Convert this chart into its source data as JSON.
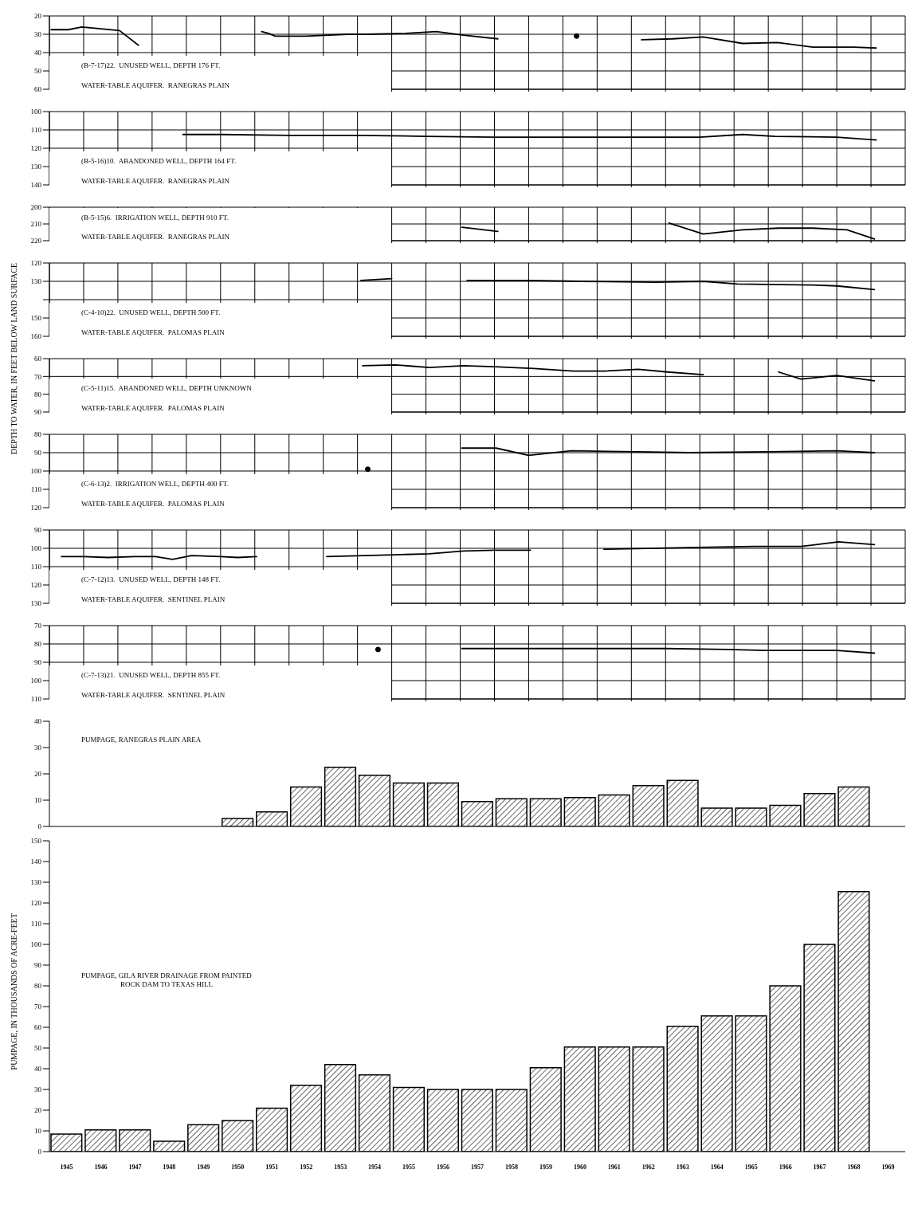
{
  "chart_data": [
    {
      "type": "line",
      "xlim": [
        1944.5,
        1969.5
      ],
      "xticks": [
        1945.5,
        1946.5,
        1947.5,
        1948.5,
        1949.5,
        1950.5,
        1951.5,
        1952.5,
        1953.5,
        1954.5,
        1955.5,
        1956.5,
        1957.5,
        1958.5,
        1959.5,
        1960.5,
        1961.5,
        1962.5,
        1963.5,
        1964.5,
        1965.5,
        1966.5,
        1967.5,
        1968.5
      ],
      "ylim": [
        60,
        20
      ],
      "yticks": [
        20,
        30,
        40,
        50,
        60
      ],
      "grid": true,
      "tick_labels": "y",
      "annotations": [
        "(B-7-17)22.  UNUSED WELL, DEPTH 176 FT.",
        "WATER-TABLE AQUIFER.  RANEGRAS PLAIN"
      ],
      "series": [
        {
          "type": "line",
          "color": "#000000",
          "marker": "none",
          "x": [
            1944.55,
            1945.05,
            1945.45,
            1946,
            1946.55,
            1947.1,
            1948.5,
            1950.7,
            1950.9,
            1951.1,
            1952,
            1953.2,
            1953.8,
            1954.9,
            1955.8,
            1956.6,
            1957.6,
            1959.5,
            1961.8,
            1962.7,
            1963.6,
            1964.75,
            1965.77,
            1966.8,
            1968,
            1968.65
          ],
          "values": [
            27.5,
            27.5,
            26,
            27,
            28,
            36,
            null,
            28.5,
            29.5,
            31,
            31,
            30,
            30,
            29.5,
            28.5,
            30.5,
            32.5,
            null,
            33,
            32.5,
            31.5,
            35,
            34.5,
            37,
            37,
            37.5
          ]
        },
        {
          "type": "scatter",
          "color": "#000000",
          "marker": "circle",
          "x": [
            1959.9
          ],
          "values": [
            31
          ]
        }
      ]
    },
    {
      "type": "line",
      "xlim": [
        1944.5,
        1969.5
      ],
      "xticks": [
        1945.5,
        1946.5,
        1947.5,
        1948.5,
        1949.5,
        1950.5,
        1951.5,
        1952.5,
        1953.5,
        1954.5,
        1955.5,
        1956.5,
        1957.5,
        1958.5,
        1959.5,
        1960.5,
        1961.5,
        1962.5,
        1963.5,
        1964.5,
        1965.5,
        1966.5,
        1967.5,
        1968.5
      ],
      "ylim": [
        140,
        100
      ],
      "yticks": [
        100,
        110,
        120,
        130,
        140
      ],
      "grid": true,
      "tick_labels": "y",
      "annotations": [
        "(B-5-16)10.  ABANDONED WELL, DEPTH 164 FT.",
        "WATER-TABLE AQUIFER.  RANEGRAS PLAIN"
      ],
      "series": [
        {
          "type": "line",
          "color": "#000000",
          "marker": "none",
          "x": [
            1948.4,
            1949.5,
            1951.5,
            1953.5,
            1955.5,
            1957.5,
            1959.5,
            1961.5,
            1963.5,
            1964.75,
            1965.7,
            1967.5,
            1968.65
          ],
          "values": [
            112.5,
            112.5,
            113,
            113,
            113.5,
            114,
            114,
            114,
            114,
            112.5,
            113.5,
            114,
            115.5
          ]
        }
      ]
    },
    {
      "type": "line",
      "xlim": [
        1944.5,
        1969.5
      ],
      "xticks": [
        1945.5,
        1946.5,
        1947.5,
        1948.5,
        1949.5,
        1950.5,
        1951.5,
        1952.5,
        1953.5,
        1954.5,
        1955.5,
        1956.5,
        1957.5,
        1958.5,
        1959.5,
        1960.5,
        1961.5,
        1962.5,
        1963.5,
        1964.5,
        1965.5,
        1966.5,
        1967.5,
        1968.5
      ],
      "ylim": [
        220,
        200
      ],
      "yticks": [
        200,
        210,
        220
      ],
      "grid": true,
      "tick_labels": "y",
      "annotations": [
        "(B-5-15)6.  IRRIGATION WELL, DEPTH 910 FT.",
        "WATER-TABLE AQUIFER.  RANEGRAS PLAIN"
      ],
      "series": [
        {
          "type": "line",
          "color": "#000000",
          "marker": "none",
          "x": [
            1956.55,
            1957.6,
            1959.5,
            1962.6,
            1963.6,
            1964.75,
            1965.8,
            1966.8,
            1967.8,
            1968.6
          ],
          "values": [
            212,
            214.5,
            null,
            209.5,
            216,
            213.5,
            212.5,
            212.5,
            213.5,
            219
          ]
        }
      ]
    },
    {
      "type": "line",
      "xlim": [
        1944.5,
        1969.5
      ],
      "xticks": [
        1945.5,
        1946.5,
        1947.5,
        1948.5,
        1949.5,
        1950.5,
        1951.5,
        1952.5,
        1953.5,
        1954.5,
        1955.5,
        1956.5,
        1957.5,
        1958.5,
        1959.5,
        1960.5,
        1961.5,
        1962.5,
        1963.5,
        1964.5,
        1965.5,
        1966.5,
        1967.5,
        1968.5
      ],
      "ylim": [
        160,
        120
      ],
      "yticks": [
        120,
        130,
        {
          "value": 140,
          "label": null
        },
        150,
        160
      ],
      "grid": true,
      "tick_labels": "y",
      "ylabel": "DEPTH TO WATER, IN FEET BELOW LAND SURFACE",
      "annotations": [
        "(C-4-10)22.  UNUSED WELL, DEPTH 500 FT.",
        "WATER-TABLE AQUIFER.  PALOMAS PLAIN"
      ],
      "series": [
        {
          "type": "line",
          "color": "#000000",
          "marker": "none",
          "x": [
            1953.6,
            1954.5,
            1955.5,
            1956.7,
            1958.5,
            1960,
            1962.2,
            1963.6,
            1964.6,
            1966.8,
            1967.5,
            1968.6
          ],
          "values": [
            129.5,
            128.5,
            null,
            129.5,
            129.5,
            130,
            130.5,
            130,
            131.5,
            132,
            132.5,
            134.5
          ]
        }
      ]
    },
    {
      "type": "line",
      "xlim": [
        1944.5,
        1969.5
      ],
      "xticks": [
        1945.5,
        1946.5,
        1947.5,
        1948.5,
        1949.5,
        1950.5,
        1951.5,
        1952.5,
        1953.5,
        1954.5,
        1955.5,
        1956.5,
        1957.5,
        1958.5,
        1959.5,
        1960.5,
        1961.5,
        1962.5,
        1963.5,
        1964.5,
        1965.5,
        1966.5,
        1967.5,
        1968.5
      ],
      "ylim": [
        90,
        60
      ],
      "yticks": [
        60,
        70,
        80,
        90
      ],
      "grid": true,
      "tick_labels": "y",
      "annotations": [
        "(C-5-11)15.  ABANDONED WELL, DEPTH UNKNOWN",
        "WATER-TABLE AQUIFER.  PALOMAS PLAIN"
      ],
      "series": [
        {
          "type": "line",
          "color": "#000000",
          "marker": "none",
          "x": [
            1953.65,
            1954.6,
            1955.6,
            1956.6,
            1957.5,
            1958.65,
            1959.8,
            1960.7,
            1961.7,
            1962.55,
            1963.6,
            1964.5,
            1965.8,
            1966.45,
            1967.5,
            1968.6
          ],
          "values": [
            64,
            63.5,
            65,
            64,
            64.5,
            65.5,
            67,
            67,
            66,
            67.5,
            69,
            null,
            67.5,
            71.5,
            69.5,
            72.5
          ]
        }
      ]
    },
    {
      "type": "line",
      "xlim": [
        1944.5,
        1969.5
      ],
      "xticks": [
        1945.5,
        1946.5,
        1947.5,
        1948.5,
        1949.5,
        1950.5,
        1951.5,
        1952.5,
        1953.5,
        1954.5,
        1955.5,
        1956.5,
        1957.5,
        1958.5,
        1959.5,
        1960.5,
        1961.5,
        1962.5,
        1963.5,
        1964.5,
        1965.5,
        1966.5,
        1967.5,
        1968.5
      ],
      "ylim": [
        120,
        80
      ],
      "yticks": [
        80,
        90,
        100,
        110,
        120
      ],
      "grid": true,
      "tick_labels": "y",
      "annotations": [
        "(C-6-13)2.  IRRIGATION WELL, DEPTH 400 FT.",
        "WATER-TABLE AQUIFER.  PALOMAS PLAIN"
      ],
      "series": [
        {
          "type": "line",
          "color": "#000000",
          "marker": "none",
          "x": [
            1956.55,
            1957.55,
            1958.5,
            1959.75,
            1961.7,
            1963.2,
            1965.5,
            1967.5,
            1968.6
          ],
          "values": [
            87.5,
            87.5,
            91.5,
            89,
            89.5,
            90,
            89.5,
            89,
            90
          ]
        },
        {
          "type": "scatter",
          "color": "#000000",
          "marker": "circle",
          "x": [
            1953.8
          ],
          "values": [
            99
          ]
        }
      ]
    },
    {
      "type": "line",
      "xlim": [
        1944.5,
        1969.5
      ],
      "xticks": [
        1945.5,
        1946.5,
        1947.5,
        1948.5,
        1949.5,
        1950.5,
        1951.5,
        1952.5,
        1953.5,
        1954.5,
        1955.5,
        1956.5,
        1957.5,
        1958.5,
        1959.5,
        1960.5,
        1961.5,
        1962.5,
        1963.5,
        1964.5,
        1965.5,
        1966.5,
        1967.5,
        1968.5
      ],
      "ylim": [
        130,
        90
      ],
      "yticks": [
        90,
        100,
        110,
        120,
        130
      ],
      "grid": true,
      "tick_labels": "y",
      "annotations": [
        "(C-7-12)13.  UNUSED WELL, DEPTH 148 FT.",
        "WATER-TABLE AQUIFER.  SENTINEL PLAIN"
      ],
      "series": [
        {
          "type": "line",
          "color": "#000000",
          "marker": "none",
          "x": [
            1944.85,
            1945.5,
            1946.2,
            1947,
            1947.6,
            1948.1,
            1948.65,
            1949.5,
            1950,
            1950.55,
            1951.5,
            1952.6,
            1954.6,
            1955.6,
            1956.6,
            1957.5,
            1958.55,
            1959.5,
            1960.7,
            1963.4,
            1965.1,
            1966.45,
            1967.55,
            1968.6
          ],
          "values": [
            104.5,
            104.5,
            105,
            104.5,
            104.5,
            106,
            104,
            104.5,
            105,
            104.5,
            null,
            104.5,
            103.5,
            103,
            101.5,
            101,
            101,
            null,
            100.5,
            99.5,
            99,
            99,
            96.5,
            98
          ]
        }
      ]
    },
    {
      "type": "line",
      "xlim": [
        1944.5,
        1969.5
      ],
      "xticks": [
        1945.5,
        1946.5,
        1947.5,
        1948.5,
        1949.5,
        1950.5,
        1951.5,
        1952.5,
        1953.5,
        1954.5,
        1955.5,
        1956.5,
        1957.5,
        1958.5,
        1959.5,
        1960.5,
        1961.5,
        1962.5,
        1963.5,
        1964.5,
        1965.5,
        1966.5,
        1967.5,
        1968.5
      ],
      "ylim": [
        110,
        70
      ],
      "yticks": [
        70,
        80,
        90,
        100,
        110
      ],
      "grid": true,
      "tick_labels": "y",
      "annotations": [
        "(C-7-13)21.  UNUSED WELL, DEPTH 855 FT.",
        "WATER-TABLE AQUIFER.  SENTINEL PLAIN"
      ],
      "series": [
        {
          "type": "line",
          "color": "#000000",
          "marker": "none",
          "x": [
            1956.55,
            1958.5,
            1960.5,
            1962.5,
            1964.25,
            1965.4,
            1967.5,
            1968.6
          ],
          "values": [
            82.5,
            82.5,
            82.5,
            82.5,
            83,
            83.5,
            83.5,
            85
          ]
        },
        {
          "type": "scatter",
          "color": "#000000",
          "marker": "circle",
          "x": [
            1954.1
          ],
          "values": [
            83
          ]
        }
      ]
    },
    {
      "type": "bar",
      "x": [
        1950,
        1951,
        1952,
        1953,
        1954,
        1955,
        1956,
        1957,
        1958,
        1959,
        1960,
        1961,
        1962,
        1963,
        1964,
        1965,
        1966,
        1967,
        1968
      ],
      "xlim": [
        1944.5,
        1969.5
      ],
      "xticks": [
        1945,
        1946,
        1947,
        1948,
        1949,
        1950,
        1951,
        1952,
        1953,
        1954,
        1955,
        1956,
        1957,
        1958,
        1959,
        1960,
        1961,
        1962,
        1963,
        1964,
        1965,
        1966,
        1967,
        1968,
        1969
      ],
      "values": [
        3,
        5.5,
        15,
        22.5,
        19.5,
        16.5,
        16.5,
        9.5,
        10.5,
        10.5,
        11,
        12,
        15.5,
        17.5,
        7,
        7,
        8,
        12.5,
        15
      ],
      "color": "#000000",
      "ylim": [
        0,
        40
      ],
      "yticks": [
        0,
        10,
        20,
        30,
        40
      ],
      "tick_labels": "y",
      "annotations": [
        "PUMPAGE, RANEGRAS PLAIN AREA"
      ]
    },
    {
      "type": "bar",
      "x": [
        1945,
        1946,
        1947,
        1948,
        1949,
        1950,
        1951,
        1952,
        1953,
        1954,
        1955,
        1956,
        1957,
        1958,
        1959,
        1960,
        1961,
        1962,
        1963,
        1964,
        1965,
        1966,
        1967,
        1968
      ],
      "xlim": [
        1944.5,
        1969.5
      ],
      "xticks": [
        1945,
        1946,
        1947,
        1948,
        1949,
        1950,
        1951,
        1952,
        1953,
        1954,
        1955,
        1956,
        1957,
        1958,
        1959,
        1960,
        1961,
        1962,
        1963,
        1964,
        1965,
        1966,
        1967,
        1968,
        1969
      ],
      "values": [
        8.5,
        10.5,
        10.5,
        5,
        13,
        15,
        21,
        32,
        42,
        37,
        31,
        30,
        30,
        30,
        40.5,
        50.5,
        50.5,
        50.5,
        60.5,
        65.5,
        65.5,
        80,
        100,
        125.5
      ],
      "color": "#000000",
      "ylim": [
        0,
        150
      ],
      "yticks": [
        0,
        10,
        20,
        30,
        40,
        50,
        60,
        70,
        80,
        90,
        100,
        110,
        120,
        130,
        140,
        150
      ],
      "ylabel": "PUMPAGE, IN THOUSANDS OF ACRE-FEET",
      "annotations": [
        "PUMPAGE, GILA RIVER DRAINAGE FROM PAINTED",
        "ROCK DAM TO TEXAS HILL"
      ]
    }
  ]
}
